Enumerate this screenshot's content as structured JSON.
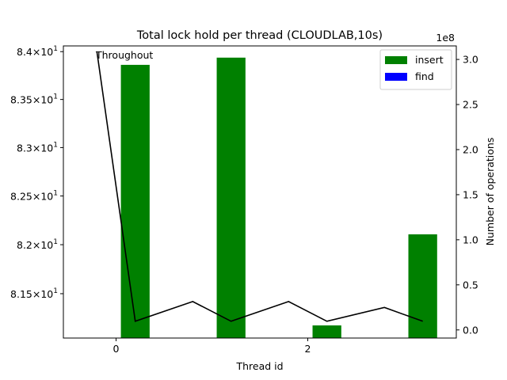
{
  "chart_data": {
    "type": "bar",
    "title": "Total lock hold per thread (CLOUDLAB,10s)",
    "xlabel": "Thread id",
    "ylabel_left": "",
    "ylabel_right": "Number of operations",
    "right_axis_offset_text": "1e8",
    "x_ticks": [
      0,
      2
    ],
    "xlim": [
      -0.55,
      3.55
    ],
    "left_axis": {
      "scale": "log",
      "ylim": [
        81.05,
        84.06
      ],
      "ticks": [
        {
          "value": 81.5,
          "mantissa": "8.15",
          "base": "10",
          "exp": "1"
        },
        {
          "value": 82.0,
          "mantissa": "8.2",
          "base": "10",
          "exp": "1"
        },
        {
          "value": 82.5,
          "mantissa": "8.25",
          "base": "10",
          "exp": "1"
        },
        {
          "value": 83.0,
          "mantissa": "8.3",
          "base": "10",
          "exp": "1"
        },
        {
          "value": 83.5,
          "mantissa": "8.35",
          "base": "10",
          "exp": "1"
        },
        {
          "value": 84.0,
          "mantissa": "8.4",
          "base": "10",
          "exp": "1"
        }
      ]
    },
    "right_axis": {
      "ylim": [
        -0.09,
        3.15
      ],
      "ticks": [
        {
          "value": 0.0,
          "label": "0.0"
        },
        {
          "value": 0.5,
          "label": "0.5"
        },
        {
          "value": 1.0,
          "label": "1.0"
        },
        {
          "value": 1.5,
          "label": "1.5"
        },
        {
          "value": 2.0,
          "label": "2.0"
        },
        {
          "value": 2.5,
          "label": "2.5"
        },
        {
          "value": 3.0,
          "label": "3.0"
        }
      ]
    },
    "bar_width": 0.3,
    "bar_offset": 0.2,
    "series": [
      {
        "name": "insert",
        "color": "#008000",
        "x": [
          0,
          1,
          2,
          3
        ],
        "values": [
          2.94,
          3.02,
          0.05,
          1.06
        ]
      },
      {
        "name": "find",
        "color": "#0000ff",
        "x": [
          0,
          1,
          2,
          3
        ],
        "values": [
          0,
          0,
          0,
          0
        ]
      }
    ],
    "line": {
      "label": "Throughout",
      "color": "#000000",
      "x": [
        -0.2,
        0.2,
        0.8,
        1.2,
        1.8,
        2.2,
        2.8,
        3.2
      ],
      "values": [
        84.0,
        81.22,
        81.42,
        81.22,
        81.42,
        81.22,
        81.36,
        81.22
      ]
    },
    "legend_position": "top-right",
    "grid": false
  }
}
